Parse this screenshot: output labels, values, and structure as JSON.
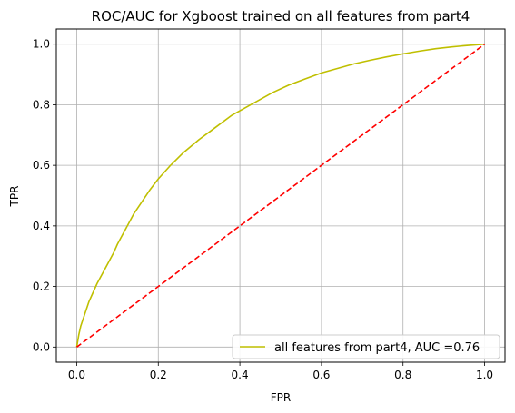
{
  "chart_data": {
    "type": "line",
    "title": "ROC/AUC for Xgboost trained on all features from part4",
    "xlabel": "FPR",
    "ylabel": "TPR",
    "xlim": [
      -0.05,
      1.05
    ],
    "ylim": [
      -0.05,
      1.05
    ],
    "xticks": [
      0.0,
      0.2,
      0.4,
      0.6,
      0.8,
      1.0
    ],
    "yticks": [
      0.0,
      0.2,
      0.4,
      0.6,
      0.8,
      1.0
    ],
    "xtick_labels": [
      "0.0",
      "0.2",
      "0.4",
      "0.6",
      "0.8",
      "1.0"
    ],
    "ytick_labels": [
      "0.0",
      "0.2",
      "0.4",
      "0.6",
      "0.8",
      "1.0"
    ],
    "grid": true,
    "legend_position": "lower-right",
    "series": [
      {
        "name": "all features from part4, AUC =0.76",
        "color": "#bfbf00",
        "style": "solid",
        "x": [
          0.0,
          0.005,
          0.01,
          0.02,
          0.03,
          0.04,
          0.05,
          0.07,
          0.09,
          0.1,
          0.12,
          0.14,
          0.16,
          0.18,
          0.2,
          0.23,
          0.26,
          0.3,
          0.34,
          0.38,
          0.4,
          0.44,
          0.48,
          0.52,
          0.56,
          0.6,
          0.64,
          0.68,
          0.72,
          0.76,
          0.8,
          0.84,
          0.88,
          0.92,
          0.96,
          1.0
        ],
        "y": [
          0.0,
          0.04,
          0.07,
          0.11,
          0.15,
          0.18,
          0.21,
          0.26,
          0.31,
          0.34,
          0.39,
          0.44,
          0.48,
          0.52,
          0.555,
          0.6,
          0.64,
          0.685,
          0.725,
          0.765,
          0.78,
          0.81,
          0.84,
          0.865,
          0.885,
          0.905,
          0.92,
          0.935,
          0.947,
          0.958,
          0.968,
          0.977,
          0.985,
          0.991,
          0.996,
          1.0
        ]
      },
      {
        "name": "",
        "color": "#ff0000",
        "style": "dashed",
        "x": [
          0.0,
          1.0
        ],
        "y": [
          0.0,
          1.0
        ]
      }
    ]
  }
}
